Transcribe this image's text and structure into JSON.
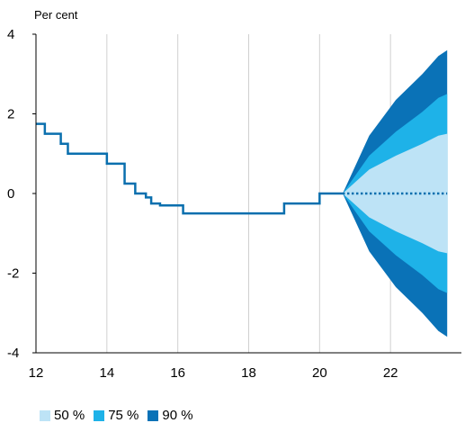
{
  "chart_data": {
    "type": "area",
    "ylabel": "Per cent",
    "xlim": [
      12,
      24
    ],
    "ylim": [
      -4,
      4
    ],
    "x_ticks": [
      12,
      14,
      16,
      18,
      20,
      22
    ],
    "y_ticks": [
      4,
      2,
      0,
      -2,
      -4
    ],
    "x_tick_labels": [
      "12",
      "14",
      "16",
      "18",
      "20",
      "22"
    ],
    "y_tick_labels": [
      "4",
      "2",
      "0",
      "-2",
      "-4"
    ],
    "grid": "vertical",
    "legend_placement": "bottom-left",
    "colors": {
      "band_50": "#bde3f6",
      "band_75": "#1eb2e8",
      "band_90": "#0a72b7",
      "line": "#0a6fae",
      "grid": "#d0d0d0",
      "axis": "#000000"
    },
    "series": [
      {
        "name": "",
        "kind": "step",
        "x": [
          12.0,
          12.25,
          12.7,
          12.9,
          14.0,
          14.5,
          14.8,
          15.1,
          15.25,
          15.5,
          16.15,
          19.0,
          20.0
        ],
        "values": [
          1.75,
          1.5,
          1.25,
          1.0,
          0.75,
          0.25,
          0.0,
          -0.1,
          -0.25,
          -0.3,
          -0.5,
          -0.25,
          0.0
        ]
      },
      {
        "name": "",
        "kind": "dotted",
        "x": [
          20.65,
          23.6
        ],
        "values": [
          0.0,
          0.0
        ]
      }
    ],
    "fan": {
      "x": [
        20.65,
        21.4,
        22.15,
        22.9,
        23.35,
        23.6
      ],
      "bands": [
        {
          "name": "50 %",
          "upper": [
            0.0,
            0.6,
            0.95,
            1.25,
            1.45,
            1.5
          ],
          "lower": [
            0.0,
            -0.6,
            -0.95,
            -1.25,
            -1.45,
            -1.5
          ]
        },
        {
          "name": "75 %",
          "upper": [
            0.0,
            0.95,
            1.55,
            2.05,
            2.4,
            2.5
          ],
          "lower": [
            0.0,
            -0.95,
            -1.55,
            -2.05,
            -2.4,
            -2.5
          ]
        },
        {
          "name": "90 %",
          "upper": [
            0.0,
            1.45,
            2.35,
            3.0,
            3.45,
            3.6
          ],
          "lower": [
            0.0,
            -1.45,
            -2.35,
            -3.0,
            -3.45,
            -3.6
          ]
        }
      ]
    },
    "legend": [
      {
        "label": "50 %",
        "color": "#bde3f6"
      },
      {
        "label": "75 %",
        "color": "#1eb2e8"
      },
      {
        "label": "90 %",
        "color": "#0a72b7"
      }
    ]
  }
}
